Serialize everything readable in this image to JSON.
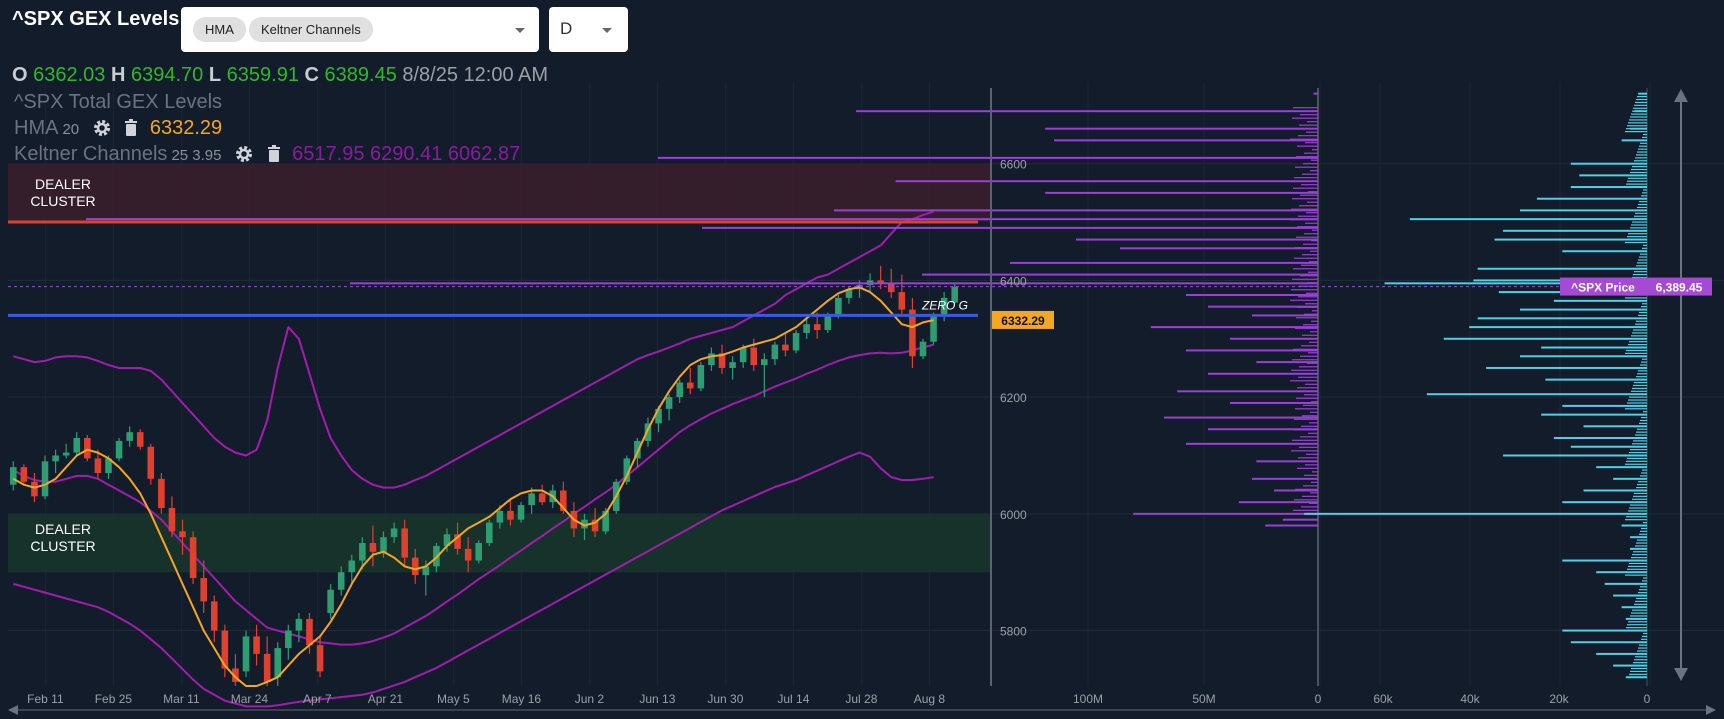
{
  "header": {
    "title": "^SPX GEX Levels",
    "indicator_chips": [
      "HMA",
      "Keltner Channels"
    ],
    "timeframe": "D"
  },
  "ohlc": {
    "o": "6362.03",
    "h": "6394.70",
    "l": "6359.91",
    "c": "6389.45",
    "datetime": "8/8/25 12:00 AM"
  },
  "legend": {
    "series": "^SPX Total GEX Levels",
    "hma": {
      "name": "HMA",
      "param": "20",
      "value": "6332.29"
    },
    "keltner": {
      "name": "Keltner Channels",
      "params": "25 3.95",
      "upper": "6517.95",
      "middle": "6290.41",
      "lower": "6062.87"
    }
  },
  "zones": [
    {
      "label": "DEALER\nCLUSTER",
      "from": 6500,
      "to": 6600,
      "color": "#3a1f2b"
    },
    {
      "label": "DEALER\nCLUSTER",
      "from": 5900,
      "to": 6000,
      "color": "#17352a"
    }
  ],
  "zero_gamma_label": "ZERO G",
  "price_label": "^SPX Price",
  "price_value": "6,389.45",
  "hma_tag": "6332.29",
  "colors": {
    "bg": "#131c2b",
    "up": "#2e9e72",
    "down": "#e0412e",
    "hma": "#f5a623",
    "keltner": "#a21caf",
    "purple": "#9b3fd8",
    "cyan": "#4fd0e6",
    "red_line": "#e0412e",
    "blue_line": "#3b5bdb"
  },
  "chart_data": {
    "type": "candlestick",
    "x_ticks": [
      "Feb 11",
      "Feb 25",
      "Mar 11",
      "Mar 24",
      "Apr 7",
      "Apr 21",
      "May 5",
      "May 16",
      "Jun 2",
      "Jun 13",
      "Jun 30",
      "Jul 14",
      "Jul 28",
      "Aug 8"
    ],
    "y_ticks": [
      5800,
      6000,
      6200,
      6400,
      6600
    ],
    "ylim": [
      5705,
      6740
    ],
    "red_level": 6500,
    "zero_gamma": 6340,
    "last_close": 6389.45,
    "hma_last": 6332.29,
    "gex_axis_ticks": [
      "100M",
      "50M",
      "0"
    ],
    "volume_axis_ticks": [
      "60k",
      "40k",
      "20k",
      "0"
    ],
    "candles": [
      [
        6050,
        6090,
        6040,
        6080
      ],
      [
        6080,
        6085,
        6050,
        6055
      ],
      [
        6055,
        6070,
        6020,
        6030
      ],
      [
        6030,
        6100,
        6025,
        6090
      ],
      [
        6090,
        6110,
        6070,
        6100
      ],
      [
        6100,
        6120,
        6095,
        6105
      ],
      [
        6105,
        6140,
        6100,
        6130
      ],
      [
        6130,
        6135,
        6090,
        6095
      ],
      [
        6095,
        6110,
        6060,
        6070
      ],
      [
        6070,
        6100,
        6060,
        6095
      ],
      [
        6095,
        6130,
        6090,
        6125
      ],
      [
        6125,
        6150,
        6115,
        6140
      ],
      [
        6140,
        6145,
        6110,
        6115
      ],
      [
        6115,
        6120,
        6050,
        6060
      ],
      [
        6060,
        6070,
        6000,
        6010
      ],
      [
        6010,
        6030,
        5960,
        5970
      ],
      [
        5970,
        5990,
        5930,
        5960
      ],
      [
        5960,
        5970,
        5880,
        5890
      ],
      [
        5890,
        5920,
        5830,
        5850
      ],
      [
        5850,
        5860,
        5780,
        5800
      ],
      [
        5800,
        5810,
        5720,
        5735
      ],
      [
        5735,
        5760,
        5705,
        5712
      ],
      [
        5730,
        5800,
        5720,
        5790
      ],
      [
        5790,
        5810,
        5740,
        5760
      ],
      [
        5760,
        5790,
        5705,
        5712
      ],
      [
        5720,
        5780,
        5705,
        5770
      ],
      [
        5770,
        5810,
        5750,
        5800
      ],
      [
        5800,
        5830,
        5780,
        5820
      ],
      [
        5820,
        5830,
        5760,
        5775
      ],
      [
        5775,
        5790,
        5720,
        5730
      ],
      [
        5830,
        5880,
        5820,
        5870
      ],
      [
        5870,
        5910,
        5860,
        5900
      ],
      [
        5900,
        5930,
        5880,
        5920
      ],
      [
        5920,
        5960,
        5905,
        5950
      ],
      [
        5950,
        5980,
        5910,
        5935
      ],
      [
        5935,
        5970,
        5925,
        5960
      ],
      [
        5960,
        5985,
        5950,
        5975
      ],
      [
        5975,
        5990,
        5910,
        5925
      ],
      [
        5925,
        5940,
        5880,
        5895
      ],
      [
        5895,
        5920,
        5860,
        5910
      ],
      [
        5910,
        5950,
        5900,
        5945
      ],
      [
        5945,
        5975,
        5935,
        5965
      ],
      [
        5965,
        5985,
        5930,
        5940
      ],
      [
        5940,
        5960,
        5900,
        5920
      ],
      [
        5920,
        5955,
        5915,
        5950
      ],
      [
        5950,
        5990,
        5945,
        5985
      ],
      [
        5985,
        6015,
        5975,
        6005
      ],
      [
        6005,
        6025,
        5980,
        5990
      ],
      [
        5990,
        6020,
        5985,
        6015
      ],
      [
        6015,
        6045,
        6000,
        6035
      ],
      [
        6035,
        6050,
        6015,
        6020
      ],
      [
        6020,
        6050,
        6010,
        6040
      ],
      [
        6040,
        6055,
        6000,
        6005
      ],
      [
        6005,
        6020,
        5960,
        5975
      ],
      [
        5975,
        6000,
        5955,
        5990
      ],
      [
        5990,
        6010,
        5960,
        5970
      ],
      [
        5970,
        6010,
        5965,
        6005
      ],
      [
        6005,
        6060,
        6000,
        6055
      ],
      [
        6055,
        6100,
        6050,
        6095
      ],
      [
        6095,
        6130,
        6080,
        6125
      ],
      [
        6125,
        6165,
        6115,
        6155
      ],
      [
        6155,
        6185,
        6140,
        6180
      ],
      [
        6180,
        6205,
        6160,
        6200
      ],
      [
        6200,
        6230,
        6190,
        6225
      ],
      [
        6225,
        6250,
        6205,
        6215
      ],
      [
        6215,
        6260,
        6210,
        6255
      ],
      [
        6255,
        6285,
        6245,
        6275
      ],
      [
        6275,
        6290,
        6240,
        6250
      ],
      [
        6250,
        6270,
        6230,
        6260
      ],
      [
        6260,
        6290,
        6250,
        6285
      ],
      [
        6285,
        6300,
        6245,
        6255
      ],
      [
        6255,
        6275,
        6200,
        6265
      ],
      [
        6265,
        6295,
        6255,
        6290
      ],
      [
        6290,
        6310,
        6270,
        6280
      ],
      [
        6280,
        6315,
        6275,
        6310
      ],
      [
        6310,
        6335,
        6300,
        6325
      ],
      [
        6325,
        6345,
        6300,
        6315
      ],
      [
        6315,
        6345,
        6310,
        6340
      ],
      [
        6340,
        6375,
        6335,
        6370
      ],
      [
        6370,
        6390,
        6360,
        6385
      ],
      [
        6385,
        6400,
        6370,
        6392
      ],
      [
        6392,
        6412,
        6380,
        6400
      ],
      [
        6400,
        6425,
        6385,
        6395
      ],
      [
        6395,
        6420,
        6370,
        6380
      ],
      [
        6380,
        6410,
        6340,
        6350
      ],
      [
        6350,
        6370,
        6250,
        6270
      ],
      [
        6270,
        6300,
        6265,
        6295
      ],
      [
        6295,
        6345,
        6290,
        6340
      ],
      [
        6340,
        6380,
        6330,
        6370
      ],
      [
        6362,
        6395,
        6360,
        6389
      ]
    ],
    "hma_series": [
      6060,
      6050,
      6045,
      6050,
      6060,
      6080,
      6100,
      6110,
      6105,
      6095,
      6080,
      6060,
      6035,
      6000,
      5960,
      5920,
      5880,
      5840,
      5800,
      5770,
      5740,
      5720,
      5705,
      5705,
      5712,
      5720,
      5740,
      5760,
      5775,
      5790,
      5815,
      5845,
      5880,
      5910,
      5930,
      5935,
      5925,
      5910,
      5905,
      5910,
      5925,
      5945,
      5960,
      5975,
      5985,
      5995,
      6010,
      6025,
      6035,
      6040,
      6040,
      6030,
      6010,
      5990,
      5980,
      5985,
      6000,
      6030,
      6065,
      6105,
      6145,
      6180,
      6210,
      6235,
      6255,
      6265,
      6270,
      6272,
      6278,
      6285,
      6290,
      6295,
      6300,
      6310,
      6320,
      6335,
      6350,
      6365,
      6378,
      6385,
      6388,
      6380,
      6365,
      6345,
      6325,
      6320,
      6328,
      6332
    ],
    "keltner_upper": [
      6270,
      6265,
      6260,
      6262,
      6268,
      6270,
      6270,
      6268,
      6262,
      6255,
      6250,
      6250,
      6250,
      6245,
      6230,
      6210,
      6190,
      6170,
      6150,
      6130,
      6115,
      6105,
      6100,
      6110,
      6160,
      6250,
      6320,
      6300,
      6240,
      6180,
      6130,
      6100,
      6075,
      6060,
      6050,
      6045,
      6045,
      6050,
      6058,
      6065,
      6075,
      6085,
      6095,
      6105,
      6115,
      6125,
      6135,
      6145,
      6155,
      6165,
      6175,
      6185,
      6195,
      6205,
      6215,
      6225,
      6235,
      6245,
      6255,
      6265,
      6272,
      6278,
      6285,
      6292,
      6300,
      6305,
      6310,
      6315,
      6320,
      6330,
      6340,
      6350,
      6360,
      6375,
      6385,
      6395,
      6405,
      6410,
      6420,
      6430,
      6440,
      6450,
      6460,
      6480,
      6500,
      6505,
      6512,
      6518
    ],
    "keltner_middle": [
      6075,
      6065,
      6058,
      6055,
      6055,
      6060,
      6065,
      6065,
      6060,
      6050,
      6040,
      6030,
      6020,
      6005,
      5990,
      5970,
      5950,
      5930,
      5910,
      5890,
      5870,
      5850,
      5835,
      5820,
      5805,
      5800,
      5795,
      5790,
      5785,
      5780,
      5778,
      5776,
      5776,
      5778,
      5782,
      5788,
      5795,
      5805,
      5815,
      5825,
      5837,
      5850,
      5862,
      5875,
      5888,
      5900,
      5912,
      5925,
      5937,
      5950,
      5962,
      5975,
      5987,
      6000,
      6012,
      6025,
      6037,
      6050,
      6065,
      6080,
      6095,
      6110,
      6125,
      6140,
      6152,
      6162,
      6172,
      6180,
      6188,
      6195,
      6202,
      6210,
      6218,
      6225,
      6232,
      6240,
      6247,
      6255,
      6262,
      6268,
      6272,
      6275,
      6276,
      6275,
      6276,
      6280,
      6285,
      6290
    ],
    "keltner_lower": [
      5880,
      5875,
      5870,
      5865,
      5860,
      5855,
      5850,
      5845,
      5840,
      5832,
      5822,
      5812,
      5800,
      5785,
      5770,
      5752,
      5734,
      5716,
      5700,
      5690,
      5680,
      5675,
      5670,
      5670,
      5670,
      5672,
      5675,
      5678,
      5680,
      5682,
      5684,
      5686,
      5688,
      5690,
      5694,
      5700,
      5706,
      5712,
      5720,
      5728,
      5736,
      5746,
      5756,
      5766,
      5776,
      5786,
      5796,
      5806,
      5816,
      5826,
      5836,
      5846,
      5856,
      5866,
      5876,
      5886,
      5896,
      5906,
      5916,
      5926,
      5936,
      5946,
      5956,
      5966,
      5976,
      5986,
      5996,
      6006,
      6014,
      6022,
      6030,
      6038,
      6046,
      6052,
      6058,
      6066,
      6074,
      6082,
      6090,
      6098,
      6105,
      6098,
      6078,
      6063,
      6058,
      6058,
      6060,
      6063
    ],
    "gex_profile": [
      [
        6720,
        1
      ],
      [
        6690,
        105
      ],
      [
        6660,
        62
      ],
      [
        6640,
        60
      ],
      [
        6610,
        150
      ],
      [
        6570,
        96
      ],
      [
        6550,
        62
      ],
      [
        6520,
        110
      ],
      [
        6505,
        280
      ],
      [
        6490,
        140
      ],
      [
        6470,
        55
      ],
      [
        6455,
        45
      ],
      [
        6430,
        70
      ],
      [
        6410,
        90
      ],
      [
        6395,
        220
      ],
      [
        6375,
        30
      ],
      [
        6355,
        25
      ],
      [
        6340,
        15
      ],
      [
        6320,
        38
      ],
      [
        6300,
        20
      ],
      [
        6280,
        30
      ],
      [
        6260,
        14
      ],
      [
        6240,
        25
      ],
      [
        6210,
        32
      ],
      [
        6190,
        20
      ],
      [
        6165,
        35
      ],
      [
        6145,
        25
      ],
      [
        6120,
        30
      ],
      [
        6090,
        14
      ],
      [
        6060,
        15
      ],
      [
        6040,
        10
      ],
      [
        6020,
        18
      ],
      [
        6000,
        42
      ],
      [
        5990,
        8
      ],
      [
        5980,
        12
      ]
    ],
    "volume_profile": [
      [
        6720,
        2
      ],
      [
        6690,
        3
      ],
      [
        6660,
        4
      ],
      [
        6640,
        6
      ],
      [
        6600,
        18
      ],
      [
        6580,
        16
      ],
      [
        6560,
        18
      ],
      [
        6540,
        26
      ],
      [
        6520,
        30
      ],
      [
        6505,
        56
      ],
      [
        6485,
        34
      ],
      [
        6470,
        36
      ],
      [
        6450,
        20
      ],
      [
        6420,
        40
      ],
      [
        6400,
        41
      ],
      [
        6395,
        62
      ],
      [
        6380,
        35
      ],
      [
        6365,
        22
      ],
      [
        6350,
        30
      ],
      [
        6335,
        40
      ],
      [
        6320,
        42
      ],
      [
        6300,
        48
      ],
      [
        6285,
        25
      ],
      [
        6270,
        30
      ],
      [
        6250,
        38
      ],
      [
        6230,
        24
      ],
      [
        6205,
        52
      ],
      [
        6185,
        20
      ],
      [
        6170,
        25
      ],
      [
        6150,
        15
      ],
      [
        6130,
        22
      ],
      [
        6115,
        18
      ],
      [
        6100,
        34
      ],
      [
        6080,
        12
      ],
      [
        6060,
        8
      ],
      [
        6040,
        15
      ],
      [
        6020,
        20
      ],
      [
        6000,
        81
      ],
      [
        5980,
        6
      ],
      [
        5960,
        4
      ],
      [
        5940,
        4
      ],
      [
        5920,
        20
      ],
      [
        5900,
        12
      ],
      [
        5880,
        10
      ],
      [
        5860,
        8
      ],
      [
        5840,
        6
      ],
      [
        5820,
        5
      ],
      [
        5800,
        20
      ],
      [
        5780,
        18
      ],
      [
        5760,
        12
      ],
      [
        5740,
        8
      ],
      [
        5720,
        5
      ]
    ]
  }
}
